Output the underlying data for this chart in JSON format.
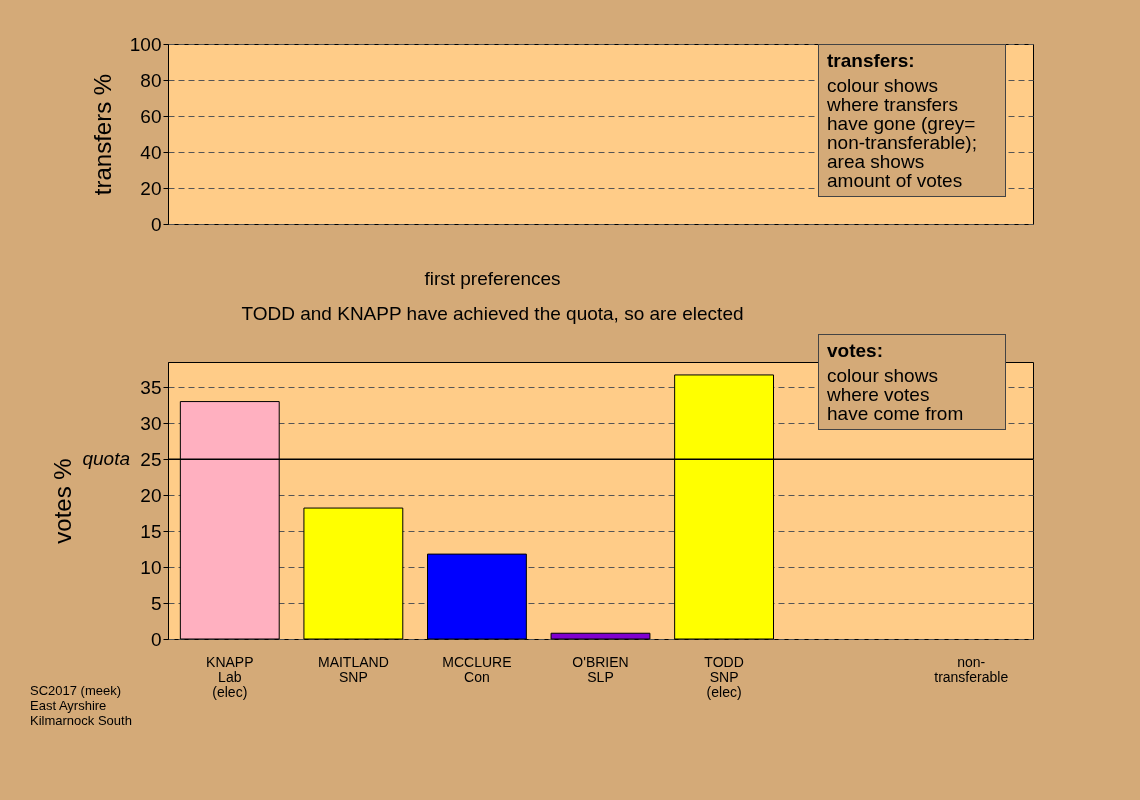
{
  "chart_data": [
    {
      "type": "bar",
      "ylabel": "transfers %",
      "categories": [
        null,
        null,
        null,
        null,
        null,
        null,
        null
      ],
      "values": [
        null,
        null,
        null,
        null,
        null,
        null,
        null
      ],
      "ylim": [
        0,
        100
      ],
      "yticks": [
        0,
        20,
        40,
        60,
        80,
        100
      ],
      "grid": true,
      "tick_labels": "y",
      "annotations": [
        "transfers:\ncolour shows\nwhere transfers\nhave gone (grey=\nnon-transferable);\narea shows\namount of votes"
      ]
    },
    {
      "type": "bar",
      "title": "first preferences",
      "subtitle": "TODD and KNAPP have achieved the quota, so are elected",
      "ylabel": "votes %",
      "categories": [
        "KNAPP\nLab\n(elec)",
        "MAITLAND\nSNP",
        "MCCLURE\nCon",
        "O'BRIEN\nSLP",
        "TODD\nSNP\n(elec)",
        null,
        "non-\ntransferable"
      ],
      "values": [
        33.0,
        18.2,
        11.8,
        0.8,
        36.7,
        null,
        null
      ],
      "colors": [
        "#ffb0c0",
        "#ffff00",
        "#0000ff",
        "#8000d0",
        "#ffff00",
        "#808080",
        "#808080"
      ],
      "ylim": [
        0,
        38.5
      ],
      "yticks": [
        0,
        5,
        10,
        15,
        20,
        25,
        30,
        35
      ],
      "grid": true,
      "ref_lines": [
        {
          "axis": "y",
          "value": 25,
          "label": "quota"
        }
      ],
      "annotations": [
        "votes:\ncolour shows\nwhere votes\nhave come from",
        "SC2017 (meek)\nEast Ayrshire\nKilmarnock South"
      ]
    }
  ]
}
